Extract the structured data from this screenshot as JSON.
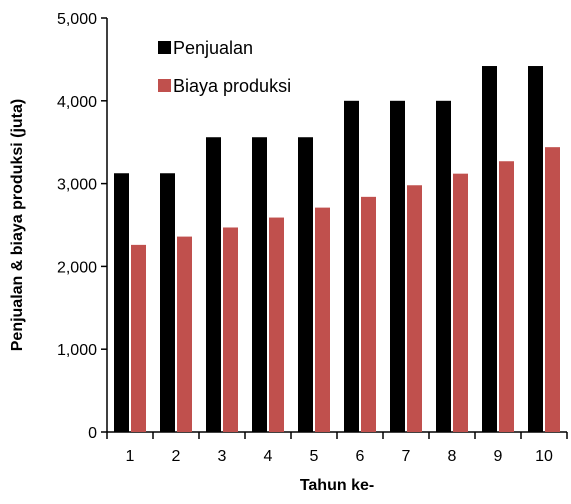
{
  "chart_data": {
    "type": "bar",
    "xlabel": "Tahun ke-",
    "ylabel": "Penjualan & biaya produksi  (juta)",
    "categories": [
      "1",
      "2",
      "3",
      "4",
      "5",
      "6",
      "7",
      "8",
      "9",
      "10"
    ],
    "ylim": [
      0,
      5000
    ],
    "yticks": [
      "0",
      "1,000",
      "2,000",
      "3,000",
      "4,000",
      "5,000"
    ],
    "ytick_values": [
      0,
      1000,
      2000,
      3000,
      4000,
      5000
    ],
    "legend_position": "top-left",
    "grid": false,
    "series": [
      {
        "name": "Penjualan",
        "color": "#000000",
        "values": [
          3125,
          3125,
          3560,
          3560,
          3560,
          4000,
          4000,
          4000,
          4420,
          4420
        ]
      },
      {
        "name": "Biaya produksi",
        "color": "#c0504d",
        "values": [
          2260,
          2360,
          2470,
          2590,
          2710,
          2840,
          2980,
          3120,
          3270,
          3440
        ]
      }
    ]
  }
}
